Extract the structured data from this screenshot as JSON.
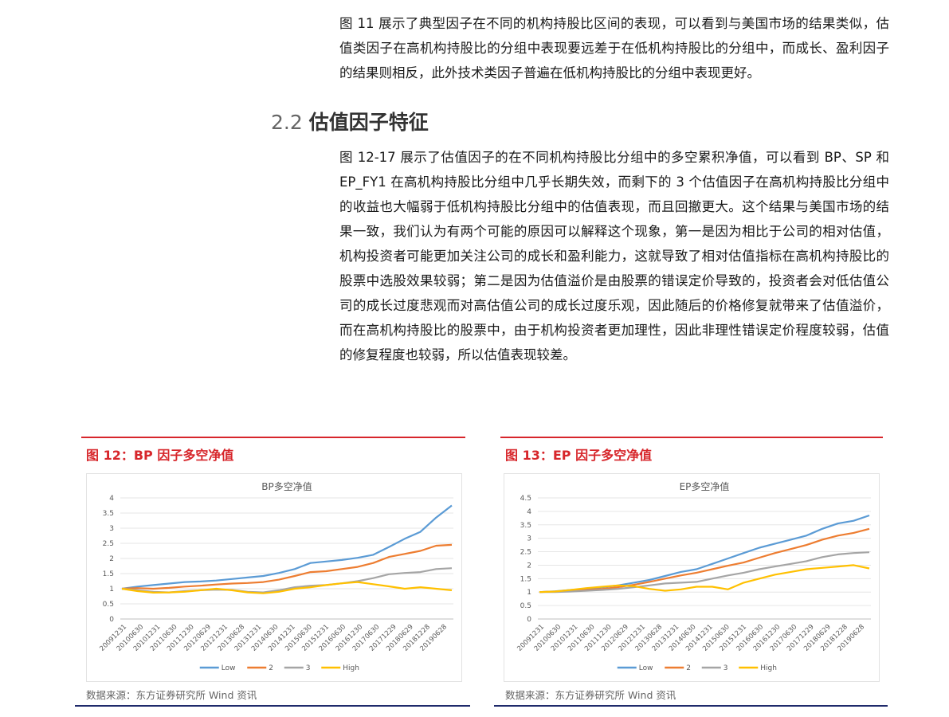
{
  "text": {
    "paragraph1": "图 11 展示了典型因子在不同的机构持股比区间的表现，可以看到与美国市场的结果类似，估值类因子在高机构持股比的分组中表现要远差于在低机构持股比的分组中，而成长、盈利因子的结果则相反，此外技术类因子普遍在低机构持股比的分组中表现更好。",
    "section_number": "2.2",
    "section_title": "估值因子特征",
    "paragraph2": "图 12-17 展示了估值因子的在不同机构持股比分组中的多空累积净值，可以看到 BP、SP 和 EP_FY1 在高机构持股比分组中几乎长期失效，而剩下的 3 个估值因子在高机构持股比分组中的收益也大幅弱于低机构持股比分组中的估值表现，而且回撤更大。这个结果与美国市场的结果一致，我们认为有两个可能的原因可以解释这个现象，第一是因为相比于公司的相对估值，机构投资者可能更加关注公司的成长和盈利能力，这就导致了相对估值指标在高机构持股比的股票中选股效果较弱；第二是因为估值溢价是由股票的错误定价导致的，投资者会对低估值公司的成长过度悲观而对高估值公司的成长过度乐观，因此随后的价格修复就带来了估值溢价，而在高机构持股比的股票中，由于机构投资者更加理性，因此非理性错误定价程度较弱，估值的修复程度也较弱，所以估值表现较差。"
  },
  "figures": [
    {
      "caption": "图 12：BP 因子多空净值",
      "source": "数据来源：东方证券研究所 Wind 资讯"
    },
    {
      "caption": "图 13：EP 因子多空净值",
      "source": "数据来源：东方证券研究所 Wind 资讯"
    }
  ],
  "chart_data": [
    {
      "type": "line",
      "title": "BP多空净值",
      "xlabel": "",
      "ylabel": "",
      "ylim": [
        0,
        4
      ],
      "yticks": [
        "0",
        "0.5",
        "1",
        "1.5",
        "2",
        "2.5",
        "3",
        "3.5",
        "4"
      ],
      "x_tick_labels": [
        "20091231",
        "20100630",
        "20101231",
        "20110630",
        "20111230",
        "20120629",
        "20121231",
        "20130628",
        "20131231",
        "20140630",
        "20141231",
        "20150630",
        "20151231",
        "20160630",
        "20161230",
        "20170630",
        "20171229",
        "20180629",
        "20181228",
        "20190628"
      ],
      "legend": "bottom",
      "grid": true,
      "series": [
        {
          "name": "Low",
          "color": "#5b9bd5",
          "values": [
            1.0,
            1.07,
            1.12,
            1.17,
            1.22,
            1.24,
            1.27,
            1.32,
            1.37,
            1.42,
            1.52,
            1.65,
            1.85,
            1.9,
            1.95,
            2.02,
            2.12,
            2.38,
            2.65,
            2.88,
            3.35,
            3.75
          ]
        },
        {
          "name": "2",
          "color": "#ed7d31",
          "values": [
            1.0,
            1.02,
            1.0,
            1.03,
            1.07,
            1.1,
            1.14,
            1.17,
            1.19,
            1.22,
            1.3,
            1.42,
            1.55,
            1.58,
            1.65,
            1.72,
            1.85,
            2.05,
            2.15,
            2.25,
            2.42,
            2.45
          ]
        },
        {
          "name": "3",
          "color": "#a5a5a5",
          "values": [
            1.0,
            0.95,
            0.9,
            0.88,
            0.92,
            0.95,
            0.97,
            0.96,
            0.9,
            0.88,
            0.95,
            1.05,
            1.1,
            1.12,
            1.18,
            1.25,
            1.35,
            1.48,
            1.52,
            1.55,
            1.65,
            1.68
          ]
        },
        {
          "name": "High",
          "color": "#ffc000",
          "values": [
            1.0,
            0.92,
            0.87,
            0.88,
            0.9,
            0.95,
            1.0,
            0.95,
            0.88,
            0.85,
            0.9,
            1.0,
            1.05,
            1.12,
            1.18,
            1.22,
            1.15,
            1.08,
            1.0,
            1.05,
            1.0,
            0.95
          ]
        }
      ]
    },
    {
      "type": "line",
      "title": "EP多空净值",
      "xlabel": "",
      "ylabel": "",
      "ylim": [
        0,
        4.5
      ],
      "yticks": [
        "0",
        "0.5",
        "1",
        "1.5",
        "2",
        "2.5",
        "3",
        "3.5",
        "4",
        "4.5"
      ],
      "x_tick_labels": [
        "20091231",
        "20100630",
        "20101231",
        "20110630",
        "20111230",
        "20120629",
        "20121231",
        "20130628",
        "20131231",
        "20140630",
        "20141231",
        "20150630",
        "20151231",
        "20160630",
        "20161230",
        "20170630",
        "20171229",
        "20180629",
        "20181228",
        "20190628"
      ],
      "legend": "bottom",
      "grid": true,
      "series": [
        {
          "name": "Low",
          "color": "#5b9bd5",
          "values": [
            1.0,
            1.03,
            1.08,
            1.12,
            1.18,
            1.25,
            1.35,
            1.45,
            1.6,
            1.75,
            1.85,
            2.05,
            2.25,
            2.45,
            2.65,
            2.8,
            2.95,
            3.1,
            3.35,
            3.55,
            3.65,
            3.85
          ]
        },
        {
          "name": "2",
          "color": "#ed7d31",
          "values": [
            1.0,
            1.02,
            1.05,
            1.08,
            1.12,
            1.18,
            1.27,
            1.38,
            1.5,
            1.62,
            1.72,
            1.85,
            1.98,
            2.1,
            2.28,
            2.45,
            2.6,
            2.75,
            2.95,
            3.1,
            3.2,
            3.35
          ]
        },
        {
          "name": "3",
          "color": "#a5a5a5",
          "values": [
            1.0,
            1.0,
            1.02,
            1.05,
            1.08,
            1.12,
            1.18,
            1.25,
            1.32,
            1.35,
            1.38,
            1.5,
            1.62,
            1.72,
            1.85,
            1.95,
            2.05,
            2.15,
            2.3,
            2.4,
            2.45,
            2.48
          ]
        },
        {
          "name": "High",
          "color": "#ffc000",
          "values": [
            1.0,
            1.02,
            1.08,
            1.15,
            1.2,
            1.25,
            1.22,
            1.12,
            1.05,
            1.1,
            1.2,
            1.2,
            1.1,
            1.35,
            1.5,
            1.65,
            1.75,
            1.85,
            1.9,
            1.95,
            2.0,
            1.88
          ]
        }
      ]
    }
  ]
}
